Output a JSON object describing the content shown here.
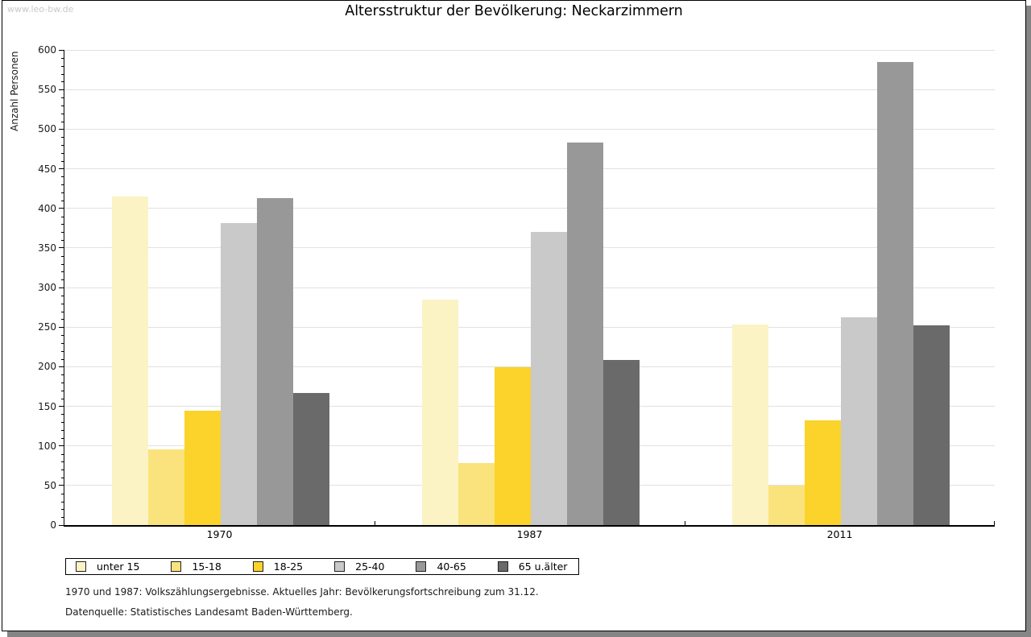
{
  "watermark": "www.leo-bw.de",
  "title": "Altersstruktur der Bevölkerung: Neckarzimmern",
  "ylabel": "Anzahl Personen",
  "footnote1": "1970 und 1987: Volkszählungsergebnisse. Aktuelles Jahr: Bevölkerungsfortschreibung zum 31.12.",
  "footnote2": "Datenquelle: Statistisches Landesamt Baden-Württemberg.",
  "chart_data": {
    "type": "bar",
    "title": "Altersstruktur der Bevölkerung: Neckarzimmern",
    "ylabel": "Anzahl Personen",
    "xlabel": "",
    "categories": [
      "1970",
      "1987",
      "2011"
    ],
    "series": [
      {
        "name": "unter 15",
        "color": "#FBF3C4",
        "values": [
          415,
          285,
          253
        ]
      },
      {
        "name": "15-18",
        "color": "#FAE37D",
        "values": [
          96,
          78,
          50
        ]
      },
      {
        "name": "18-25",
        "color": "#FBD32B",
        "values": [
          144,
          199,
          132
        ]
      },
      {
        "name": "25-40",
        "color": "#C9C9C9",
        "values": [
          381,
          370,
          262
        ]
      },
      {
        "name": "40-65",
        "color": "#989898",
        "values": [
          413,
          483,
          585
        ]
      },
      {
        "name": "65 u.älter",
        "color": "#6A6A6A",
        "values": [
          167,
          208,
          252
        ]
      }
    ],
    "ylim": [
      0,
      600
    ],
    "ytick_major": 50,
    "ytick_minor": 10,
    "grid": true,
    "legend_position": "bottom"
  }
}
